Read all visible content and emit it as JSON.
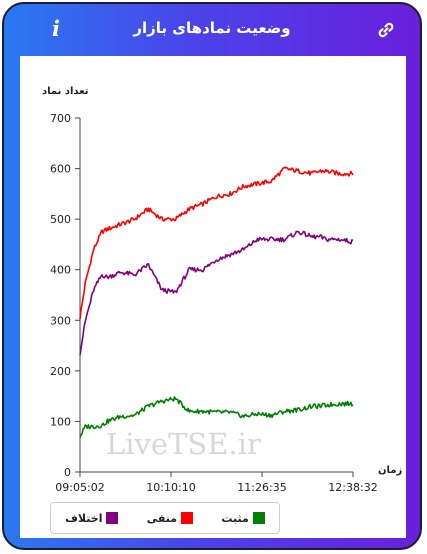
{
  "header": {
    "title": "وضعیت نمادهای بازار",
    "info_label": "i"
  },
  "watermark": "LiveTSE.ir",
  "chart_data": {
    "type": "line",
    "ylabel": "تعداد نماد",
    "xlabel": "زمان",
    "ylim": [
      0,
      700
    ],
    "yticks": [
      0,
      100,
      200,
      300,
      400,
      500,
      600,
      700
    ],
    "xticks": [
      "09:05:02",
      "10:10:10",
      "11:26:35",
      "12:38:32"
    ],
    "x": [
      0,
      0.02,
      0.05,
      0.08,
      0.1,
      0.15,
      0.2,
      0.25,
      0.3,
      0.35,
      0.4,
      0.45,
      0.5,
      0.55,
      0.6,
      0.65,
      0.7,
      0.75,
      0.8,
      0.85,
      0.88,
      0.9,
      0.95,
      1.0
    ],
    "series": [
      {
        "name": "منفی",
        "color": "#ff0000",
        "values": [
          305,
          375,
          440,
          475,
          480,
          490,
          500,
          520,
          500,
          500,
          520,
          530,
          545,
          550,
          565,
          570,
          575,
          600,
          595,
          590,
          595,
          595,
          590,
          590
        ]
      },
      {
        "name": "اختلاف",
        "color": "#800080",
        "values": [
          235,
          300,
          360,
          390,
          385,
          395,
          390,
          410,
          360,
          355,
          400,
          400,
          420,
          430,
          440,
          460,
          460,
          460,
          475,
          465,
          465,
          460,
          460,
          455
        ]
      },
      {
        "name": "مثبت",
        "color": "#008000",
        "values": [
          70,
          90,
          90,
          92,
          100,
          110,
          112,
          130,
          140,
          145,
          120,
          120,
          118,
          118,
          110,
          115,
          112,
          120,
          123,
          130,
          130,
          132,
          135,
          135
        ]
      }
    ]
  },
  "legend": [
    {
      "label": "مثبت",
      "color": "#008000"
    },
    {
      "label": "منفی",
      "color": "#ff0000"
    },
    {
      "label": "اختلاف",
      "color": "#800080"
    }
  ]
}
